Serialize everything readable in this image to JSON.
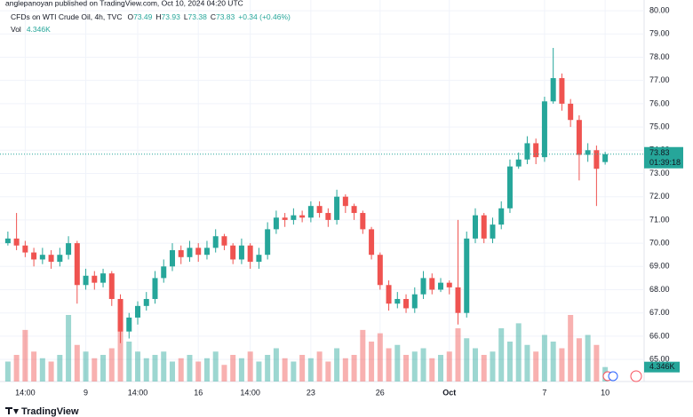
{
  "header": {
    "publisher": "anglepanoyan published on TradingView.com, Oct 10, 2024 04:20 UTC"
  },
  "legend": {
    "symbol": "CFDs on WTI Crude Oil, 4h, TVC",
    "fields": [
      {
        "label": "O",
        "value": "73.49"
      },
      {
        "label": "H",
        "value": "73.93"
      },
      {
        "label": "L",
        "value": "73.38"
      },
      {
        "label": "C",
        "value": "73.83"
      }
    ],
    "change": "+0.34 (+0.46%)",
    "vol_label": "Vol",
    "vol_value": "4.346K"
  },
  "footer": {
    "brand": "TradingView"
  },
  "chart_data": {
    "type": "candlestick",
    "categories": [
      null,
      null,
      "14:00",
      null,
      null,
      null,
      null,
      null,
      null,
      "9",
      null,
      null,
      null,
      null,
      null,
      "14:00",
      null,
      null,
      null,
      null,
      null,
      null,
      "16",
      null,
      null,
      null,
      null,
      null,
      "14:00",
      null,
      null,
      null,
      null,
      null,
      null,
      "23",
      null,
      null,
      null,
      null,
      null,
      null,
      null,
      "26",
      null,
      null,
      null,
      null,
      null,
      null,
      null,
      "Oct",
      null,
      null,
      null,
      null,
      null,
      null,
      null,
      null,
      null,
      null,
      "7",
      null,
      null,
      null,
      null,
      null,
      null,
      "10"
    ],
    "open": [
      70.0,
      70.2,
      69.9,
      69.6,
      69.3,
      69.5,
      69.2,
      69.5,
      70.0,
      68.2,
      68.6,
      68.3,
      68.7,
      67.6,
      66.2,
      66.8,
      67.3,
      67.6,
      68.5,
      69.0,
      69.7,
      69.4,
      69.8,
      69.5,
      69.8,
      70.3,
      69.9,
      69.3,
      69.9,
      69.2,
      69.5,
      70.6,
      71.1,
      71.0,
      71.2,
      71.1,
      71.6,
      71.3,
      71.0,
      72.0,
      71.6,
      71.3,
      70.6,
      69.5,
      68.2,
      67.4,
      67.6,
      67.2,
      67.8,
      68.5,
      68.0,
      68.3,
      68.1,
      67.0,
      70.2,
      71.2,
      70.2,
      70.8,
      71.5,
      73.3,
      73.6,
      74.3,
      73.7,
      76.1,
      77.1,
      76.0,
      75.3,
      73.8,
      74.0,
      73.49
    ],
    "high": [
      70.5,
      71.3,
      70.1,
      69.8,
      69.8,
      69.7,
      69.8,
      70.3,
      70.1,
      68.9,
      68.8,
      68.9,
      68.8,
      67.8,
      67.0,
      67.5,
      67.9,
      68.8,
      69.3,
      70.0,
      69.9,
      70.1,
      70.0,
      70.1,
      70.6,
      70.4,
      70.0,
      70.2,
      70.0,
      69.8,
      70.9,
      71.4,
      71.3,
      71.5,
      71.4,
      71.8,
      71.8,
      71.5,
      72.3,
      72.1,
      71.7,
      71.4,
      70.7,
      69.6,
      68.4,
      67.9,
      67.8,
      68.1,
      68.8,
      68.7,
      68.5,
      68.4,
      71.0,
      70.5,
      71.5,
      71.3,
      71.1,
      71.8,
      73.6,
      73.9,
      74.6,
      74.5,
      76.3,
      78.4,
      77.3,
      76.2,
      75.5,
      74.3,
      74.2,
      73.93
    ],
    "low": [
      69.9,
      69.7,
      69.4,
      69.0,
      69.1,
      68.9,
      69.0,
      69.3,
      67.4,
      68.0,
      68.0,
      68.1,
      67.3,
      65.7,
      65.9,
      66.5,
      67.1,
      67.4,
      68.3,
      68.8,
      69.1,
      69.2,
      69.2,
      69.3,
      69.6,
      69.7,
      69.1,
      69.1,
      68.9,
      68.9,
      69.3,
      70.4,
      70.7,
      70.8,
      70.9,
      70.9,
      71.1,
      70.7,
      70.8,
      71.3,
      71.0,
      70.4,
      69.3,
      68.0,
      67.1,
      67.2,
      67.0,
      67.0,
      67.6,
      67.8,
      67.9,
      67.8,
      66.5,
      66.8,
      70.0,
      70.0,
      70.0,
      70.6,
      71.3,
      73.2,
      73.4,
      73.4,
      73.5,
      76.0,
      75.7,
      75.0,
      72.7,
      73.5,
      71.6,
      73.38
    ],
    "close": [
      70.2,
      69.9,
      69.6,
      69.3,
      69.5,
      69.2,
      69.5,
      70.0,
      68.2,
      68.6,
      68.3,
      68.7,
      67.6,
      66.2,
      66.8,
      67.3,
      67.6,
      68.5,
      69.0,
      69.7,
      69.4,
      69.8,
      69.5,
      69.8,
      70.3,
      69.9,
      69.3,
      69.9,
      69.2,
      69.5,
      70.6,
      71.1,
      71.0,
      71.2,
      71.1,
      71.6,
      71.3,
      71.0,
      72.0,
      71.6,
      71.3,
      70.6,
      69.5,
      68.2,
      67.4,
      67.6,
      67.2,
      67.8,
      68.5,
      68.0,
      68.3,
      68.1,
      67.0,
      70.2,
      71.2,
      70.2,
      70.8,
      71.5,
      73.3,
      73.6,
      74.3,
      73.7,
      76.1,
      77.1,
      76.0,
      75.3,
      73.8,
      74.0,
      73.2,
      73.83
    ],
    "volume": [
      6,
      8,
      15.5,
      9,
      7,
      6,
      8,
      20,
      11,
      9,
      7,
      8,
      10,
      18,
      12,
      9,
      7,
      8,
      9,
      6,
      7,
      8,
      6,
      7,
      9,
      5,
      8,
      7,
      9,
      6,
      8,
      10,
      7,
      6,
      8,
      7,
      9,
      6,
      10,
      7,
      8,
      15.5,
      12,
      14.5,
      10,
      11,
      8,
      9,
      10,
      7,
      8,
      9,
      16,
      13,
      10,
      8,
      9,
      16,
      12,
      17.5,
      11,
      9,
      14,
      12,
      10,
      20,
      13,
      14,
      11,
      4.346
    ],
    "up_color": "#26a69a",
    "down_color": "#ef5350",
    "ylim": [
      64.05,
      80.27
    ],
    "yticks": [
      {
        "value": 65,
        "label": "65.00"
      },
      {
        "value": 66,
        "label": "66.00"
      },
      {
        "value": 67,
        "label": "67.00"
      },
      {
        "value": 68,
        "label": "68.00"
      },
      {
        "value": 69,
        "label": "69.00"
      },
      {
        "value": 70,
        "label": "70.00"
      },
      {
        "value": 71,
        "label": "71.00"
      },
      {
        "value": 72,
        "label": "72.00"
      },
      {
        "value": 73,
        "label": "73.00"
      },
      {
        "value": 74,
        "label": "74.00"
      },
      {
        "value": 75,
        "label": "75.00"
      },
      {
        "value": 76,
        "label": "76.00"
      },
      {
        "value": 77,
        "label": "77.00"
      },
      {
        "value": 78,
        "label": "78.00"
      },
      {
        "value": 79,
        "label": "79.00"
      },
      {
        "value": 80,
        "label": "80.00"
      }
    ],
    "vol_ylim": [
      0,
      24
    ],
    "grid": true,
    "last_price": {
      "value": 73.83,
      "label": "73.83",
      "countdown": "01:39:18"
    },
    "last_volume_label": "4.346K"
  }
}
